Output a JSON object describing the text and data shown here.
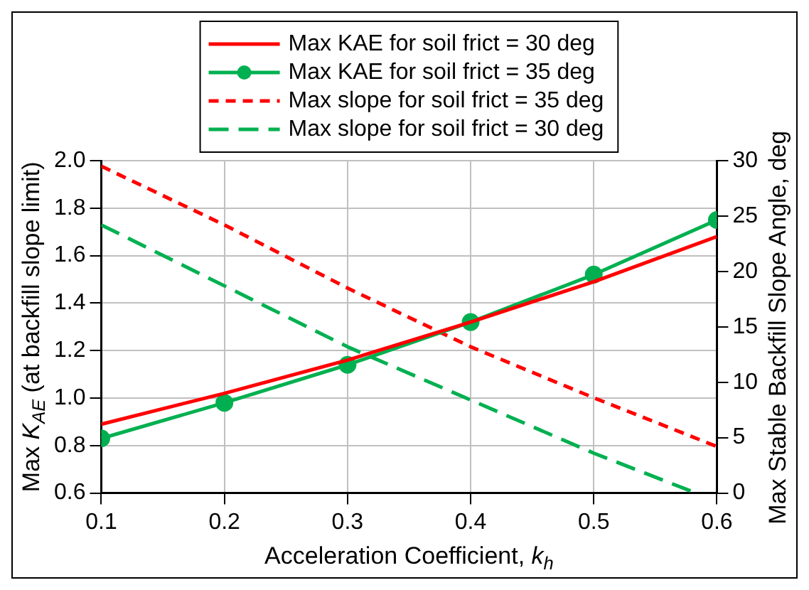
{
  "chart_data": {
    "type": "line",
    "xlabel": "Acceleration Coefficient, $_{}$k$_{h}$",
    "ylabel": "Max K$_{AE}$ (at backfill slope limit)",
    "y2label": "Max Stable Backfill Slope Angle, deg",
    "x": [
      0.1,
      0.2,
      0.3,
      0.4,
      0.5,
      0.6
    ],
    "series": [
      {
        "name": "Max KAE for soil frict = 30 deg",
        "color": "#ff0000",
        "values": [
          0.89,
          1.02,
          1.16,
          1.32,
          1.49,
          1.68
        ],
        "line_style": "solid",
        "marker": "none"
      },
      {
        "name": "Max KAE for soil frict = 35 deg",
        "color": "#00b050",
        "values": [
          0.83,
          0.98,
          1.14,
          1.32,
          1.52,
          1.75
        ],
        "line_style": "solid",
        "marker": "circle"
      },
      {
        "name": "Max slope for soil frict = 35 deg",
        "color": "#ff0000",
        "values": [
          29.5,
          24.2,
          18.5,
          13.2,
          8.6,
          4.2
        ],
        "line_style": "dashed",
        "marker": "none",
        "axis": "y2"
      },
      {
        "name": "Max slope for soil frict = 30 deg",
        "color": "#00b050",
        "x": [
          0.1,
          0.2,
          0.3,
          0.4,
          0.5,
          0.583
        ],
        "values": [
          24.2,
          18.7,
          13.2,
          8.4,
          3.6,
          0
        ],
        "line_style": "dashed",
        "marker": "none",
        "axis": "y2"
      }
    ],
    "xlim": [
      0.1,
      0.6
    ],
    "xticks": [
      0.1,
      0.2,
      0.3,
      0.4,
      0.5,
      0.6
    ],
    "ylim": [
      0.6,
      2.0
    ],
    "yticks": [
      {
        "value": 0.6,
        "label": "0.6"
      },
      {
        "value": 0.8,
        "label": "0.8"
      },
      {
        "value": 1.0,
        "label": "1.0"
      },
      {
        "value": 1.2,
        "label": "1.2"
      },
      {
        "value": 1.4,
        "label": "1.4"
      },
      {
        "value": 1.6,
        "label": "1.6"
      },
      {
        "value": 1.8,
        "label": "1.8"
      },
      {
        "value": 2.0,
        "label": "2.0"
      }
    ],
    "y2lim": [
      0,
      30
    ],
    "y2ticks": [
      0,
      5,
      10,
      15,
      20,
      25,
      30
    ],
    "grid": true,
    "legend": "top"
  }
}
